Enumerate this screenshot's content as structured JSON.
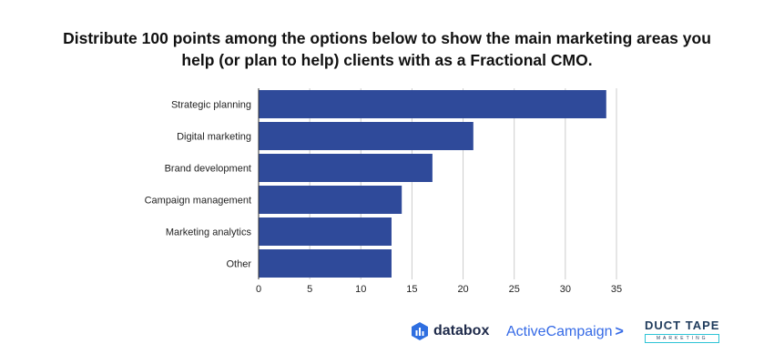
{
  "title_lines": [
    "Distribute 100 points among the options below to show the main marketing areas you",
    "help (or plan to help) clients with as a Fractional CMO."
  ],
  "chart_data": {
    "type": "bar",
    "orientation": "horizontal",
    "title": "Distribute 100 points among the options below to show the main marketing areas you help (or plan to help) clients with as a Fractional CMO.",
    "categories": [
      "Strategic planning",
      "Digital marketing",
      "Brand development",
      "Campaign management",
      "Marketing analytics",
      "Other"
    ],
    "values": [
      34,
      21,
      17,
      14,
      13,
      13
    ],
    "xlim": [
      0,
      35
    ],
    "xticks": [
      0,
      5,
      10,
      15,
      20,
      25,
      30,
      35
    ],
    "grid": true,
    "bar_color": "#2f4a9a",
    "grid_color": "#cccccc"
  },
  "logos": {
    "databox": "databox",
    "activecampaign": "ActiveCampaign",
    "activecampaign_chevron": ">",
    "ducttape_main": "DUCT TAPE",
    "ducttape_sub": "MARKETING"
  }
}
